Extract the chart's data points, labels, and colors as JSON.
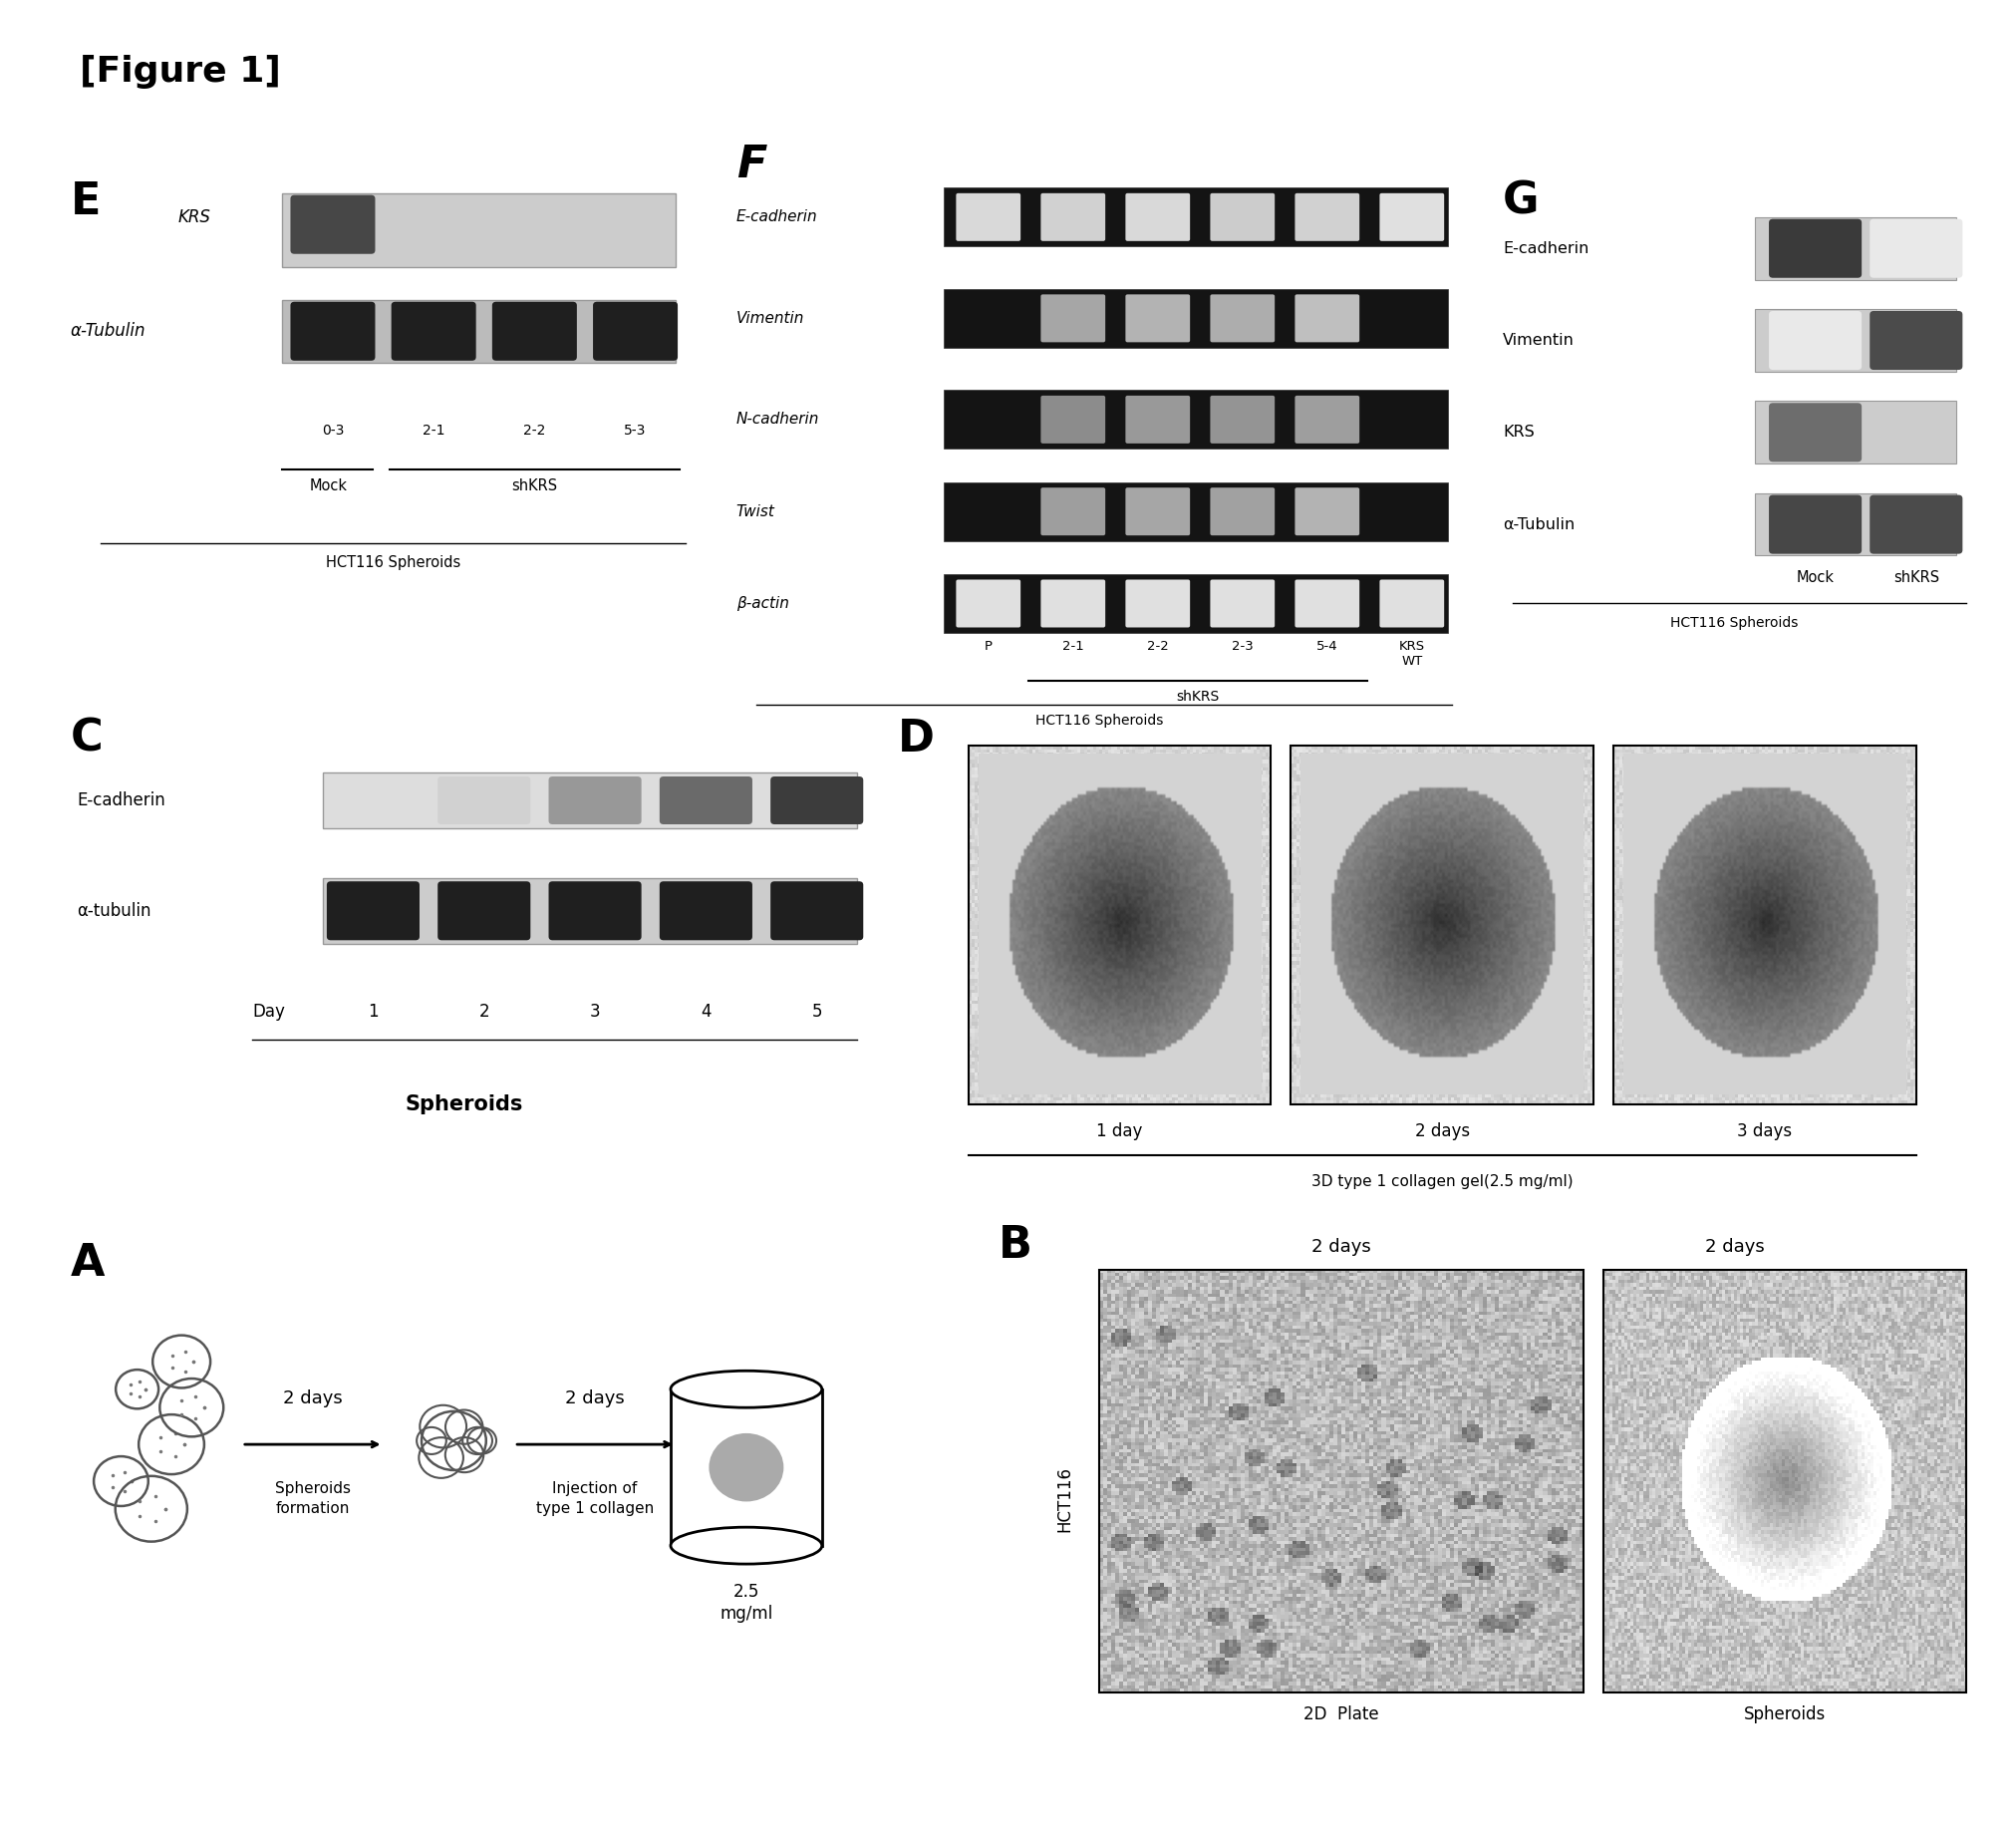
{
  "figure_title": "[Figure 1]",
  "bg_color": "#ffffff",
  "panel_A": {
    "label": "A",
    "arrow1_text": "2 days",
    "label1": "Spheroids\nformation",
    "arrow2_text": "2 days",
    "label2": "Injection of\ntype 1 collagen",
    "label3": "2.5\nmg/ml"
  },
  "panel_B": {
    "label": "B",
    "top_label1": "2 days",
    "top_label2": "2 days",
    "side_label": "HCT116",
    "bottom_label1": "2D  Plate",
    "bottom_label2": "Spheroids"
  },
  "panel_C": {
    "label": "C",
    "row1": "E-cadherin",
    "row2": "α-tubulin",
    "row3": "Day",
    "days": [
      "1",
      "2",
      "3",
      "4",
      "5"
    ],
    "bottom_label": "Spheroids"
  },
  "panel_D": {
    "label": "D",
    "time_labels": [
      "1 day",
      "2 days",
      "3 days"
    ],
    "bottom_label": "3D type 1 collagen gel(2.5 mg/ml)"
  },
  "panel_E": {
    "label": "E",
    "row1": "KRS",
    "row2": "α-Tubulin",
    "col_labels": [
      "0-3",
      "2-1",
      "2-2",
      "5-3"
    ],
    "group1": "Mock",
    "group2": "shKRS",
    "bottom_label": "HCT116 Spheroids"
  },
  "panel_F": {
    "label": "F",
    "rows": [
      "E-cadherin",
      "Vimentin",
      "N-cadherin",
      "Twist",
      "β-actin"
    ],
    "col_labels": [
      "P",
      "2-1",
      "2-2",
      "2-3",
      "5-4",
      "KRS\nWT"
    ],
    "group_label": "shKRS",
    "bottom_label": "HCT116 Spheroids"
  },
  "panel_G": {
    "label": "G",
    "rows": [
      "E-cadherin",
      "Vimentin",
      "KRS",
      "α-Tubulin"
    ],
    "col_labels": [
      "Mock",
      "shKRS"
    ],
    "bottom_label": "HCT116 Spheroids"
  }
}
